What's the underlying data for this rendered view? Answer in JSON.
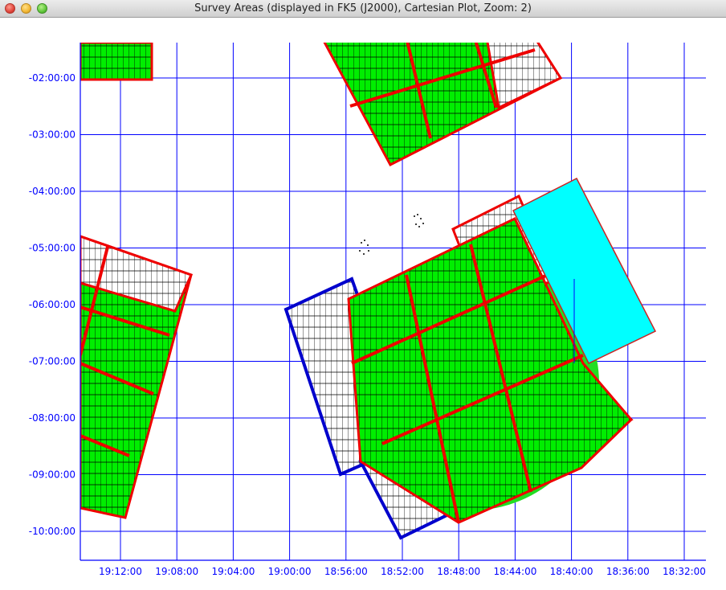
{
  "window": {
    "title": "Survey Areas (displayed in FK5 (J2000), Cartesian Plot, Zoom: 2)"
  },
  "colors": {
    "grid": "#0000ff",
    "axis_label": "#0000ff",
    "survey_fill": "#00ee00",
    "survey_border": "#ee0000",
    "blue_border": "#0000cc",
    "cyan_patch": "#00ffff",
    "hatch": "#000000"
  },
  "axes": {
    "dec_labels": [
      "-02:00:00",
      "-03:00:00",
      "-04:00:00",
      "-05:00:00",
      "-06:00:00",
      "-07:00:00",
      "-08:00:00",
      "-09:00:00",
      "-10:00:00"
    ],
    "ra_labels": [
      "19:12:00",
      "19:08:00",
      "19:04:00",
      "19:00:00",
      "18:56:00",
      "18:52:00",
      "18:48:00",
      "18:44:00",
      "18:40:00",
      "18:36:00",
      "18:32:00"
    ]
  }
}
